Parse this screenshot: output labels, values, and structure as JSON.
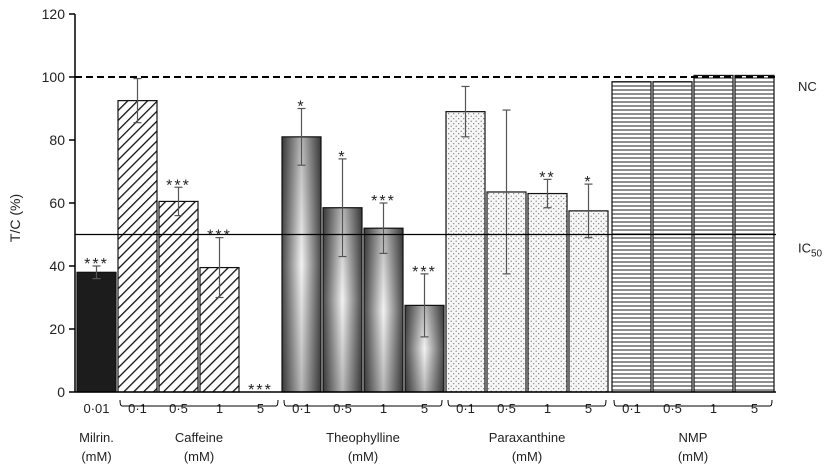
{
  "chart_data": {
    "type": "bar",
    "ylabel": "T/C (%)",
    "ylim": [
      0,
      120
    ],
    "yticks": [
      0,
      20,
      40,
      60,
      80,
      100,
      120
    ],
    "reference_lines": [
      {
        "name": "NC",
        "value": 100,
        "style": "dashed"
      },
      {
        "name": "IC",
        "subscript": "50",
        "value": 50,
        "style": "solid"
      }
    ],
    "groups": [
      {
        "name": "Milrin.",
        "unit": "(mM)",
        "pattern": "solid-dark",
        "bars": [
          {
            "dose": "0·01",
            "value": 38,
            "err": 2,
            "sig": "***"
          }
        ]
      },
      {
        "name": "Caffeine",
        "unit": "(mM)",
        "pattern": "diagonal",
        "bars": [
          {
            "dose": "0·1",
            "value": 92.5,
            "err": 7,
            "sig": ""
          },
          {
            "dose": "0·5",
            "value": 60.5,
            "err": 4.5,
            "sig": "***"
          },
          {
            "dose": "1",
            "value": 39.5,
            "err": 9.5,
            "sig": "***"
          },
          {
            "dose": "5",
            "value": 0,
            "err": 0,
            "sig": "***"
          }
        ]
      },
      {
        "name": "Theophylline",
        "unit": "(mM)",
        "pattern": "metallic",
        "bars": [
          {
            "dose": "0·1",
            "value": 81,
            "err": 9,
            "sig": "*"
          },
          {
            "dose": "0·5",
            "value": 58.5,
            "err": 15.5,
            "sig": "*"
          },
          {
            "dose": "1",
            "value": 52,
            "err": 8,
            "sig": "***"
          },
          {
            "dose": "5",
            "value": 27.5,
            "err": 10,
            "sig": "***"
          }
        ]
      },
      {
        "name": "Paraxanthine",
        "unit": "(mM)",
        "pattern": "dotted",
        "bars": [
          {
            "dose": "0·1",
            "value": 89,
            "err": 8,
            "sig": ""
          },
          {
            "dose": "0·5",
            "value": 63.5,
            "err": 26,
            "sig": ""
          },
          {
            "dose": "1",
            "value": 63,
            "err": 4.5,
            "sig": "**"
          },
          {
            "dose": "5",
            "value": 57.5,
            "err": 8.5,
            "sig": "*"
          }
        ]
      },
      {
        "name": "NMP",
        "unit": "(mM)",
        "pattern": "horizontal-lines",
        "bars": [
          {
            "dose": "0·1",
            "value": 98.5,
            "err": 0,
            "sig": ""
          },
          {
            "dose": "0·5",
            "value": 98.5,
            "err": 0,
            "sig": ""
          },
          {
            "dose": "1",
            "value": 100.5,
            "err": 0,
            "sig": ""
          },
          {
            "dose": "5",
            "value": 100.5,
            "err": 0,
            "sig": ""
          }
        ]
      }
    ]
  }
}
